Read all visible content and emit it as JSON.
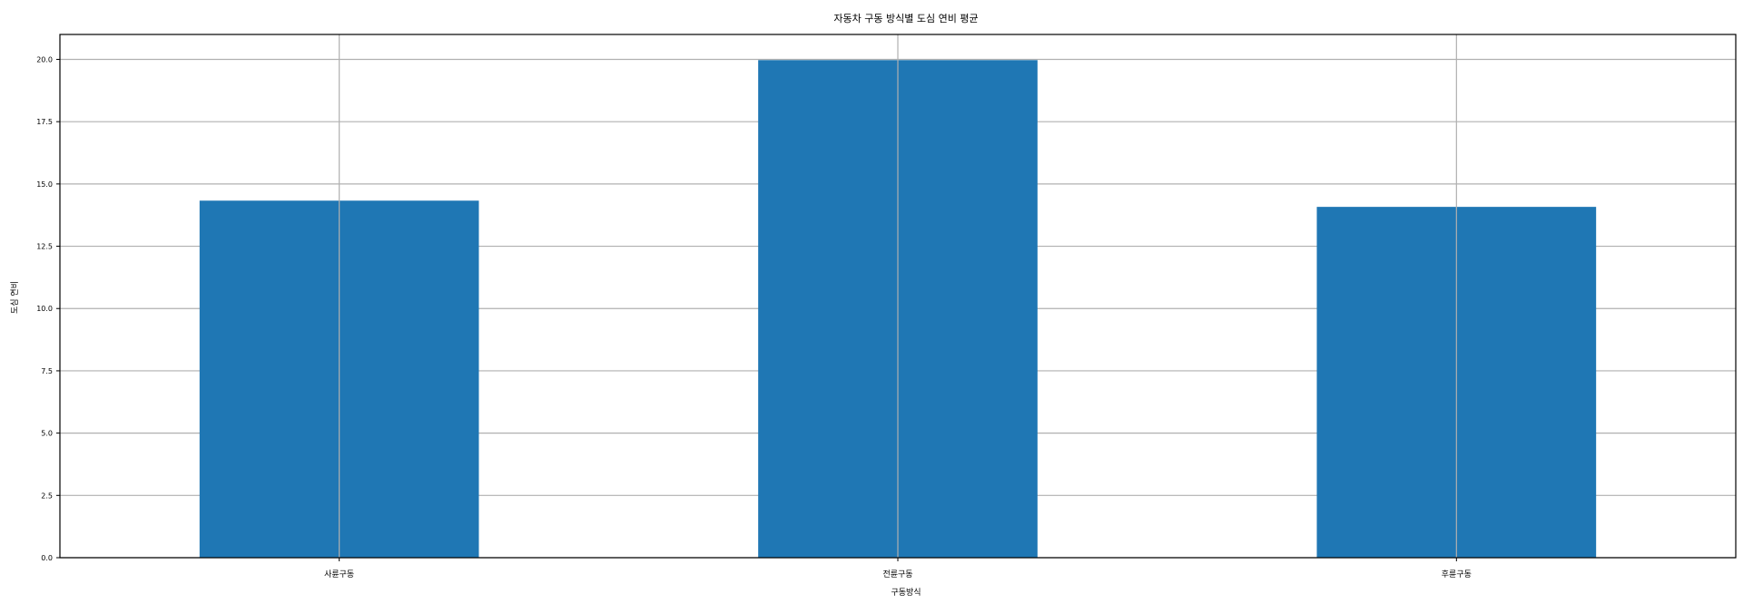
{
  "chart_data": {
    "type": "bar",
    "title": "자동차 구동 방식별 도심 연비 평균",
    "xlabel": "구동방식",
    "ylabel": "도심 연비",
    "categories": [
      "사륜구동",
      "전륜구동",
      "후륜구동"
    ],
    "values": [
      14.33,
      19.97,
      14.08
    ],
    "ylim": [
      0,
      21
    ],
    "yticks": [
      "0.0",
      "2.5",
      "5.0",
      "7.5",
      "10.0",
      "12.5",
      "15.0",
      "17.5",
      "20.0"
    ],
    "grid": true,
    "legend": "none",
    "colors": {
      "bar": "#1f77b4",
      "grid": "#b0b0b0",
      "axis": "#000000"
    }
  }
}
